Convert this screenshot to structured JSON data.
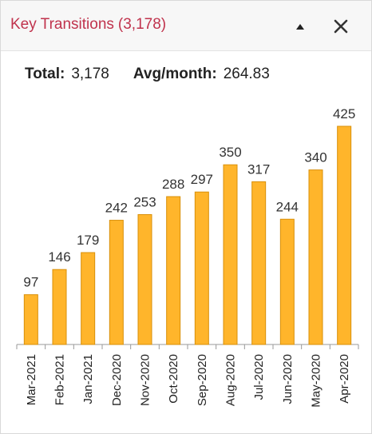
{
  "header": {
    "title": "Key Transitions",
    "count": "(3,178)",
    "collapse_icon": "triangle-up-icon",
    "close_icon": "close-x-icon"
  },
  "stats": {
    "total_label": "Total:",
    "total_value": "3,178",
    "avg_label": "Avg/month:",
    "avg_value": "264.83"
  },
  "colors": {
    "title": "#c0334d",
    "bar_fill": "#ffb52b",
    "bar_stroke": "#d9900a"
  },
  "chart_data": {
    "type": "bar",
    "categories": [
      "Mar-2021",
      "Feb-2021",
      "Jan-2021",
      "Dec-2020",
      "Nov-2020",
      "Oct-2020",
      "Sep-2020",
      "Aug-2020",
      "Jul-2020",
      "Jun-2020",
      "May-2020",
      "Apr-2020"
    ],
    "values": [
      97,
      146,
      179,
      242,
      253,
      288,
      297,
      350,
      317,
      244,
      340,
      425
    ],
    "ylim": [
      0,
      425
    ],
    "grid": false,
    "data_labels": true
  }
}
